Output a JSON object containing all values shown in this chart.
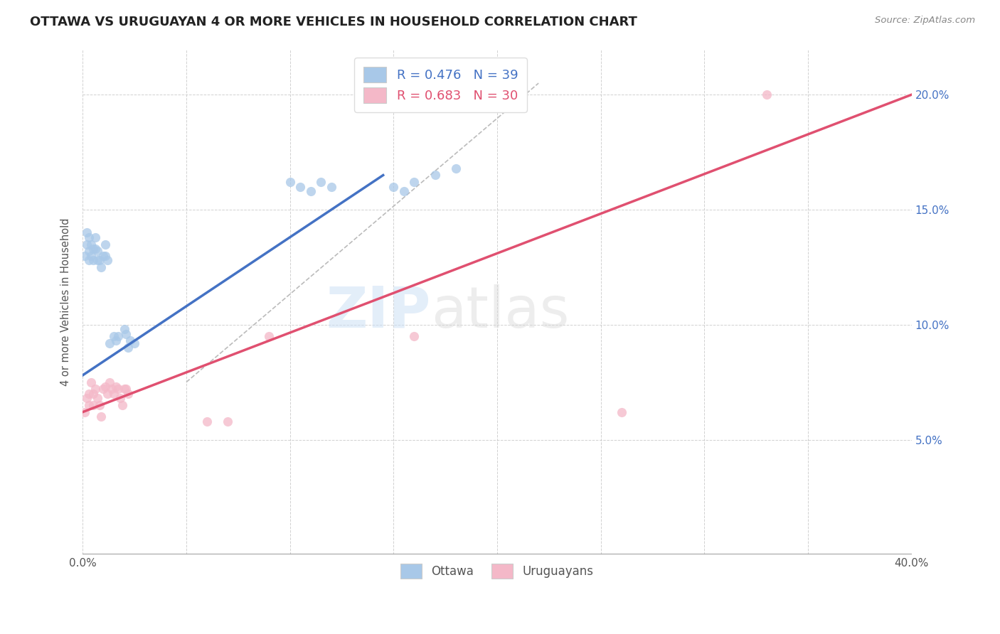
{
  "title": "OTTAWA VS URUGUAYAN 4 OR MORE VEHICLES IN HOUSEHOLD CORRELATION CHART",
  "source": "Source: ZipAtlas.com",
  "ylabel": "4 or more Vehicles in Household",
  "xlim": [
    0.0,
    0.4
  ],
  "ylim": [
    0.0,
    0.22
  ],
  "xticks": [
    0.0,
    0.05,
    0.1,
    0.15,
    0.2,
    0.25,
    0.3,
    0.35,
    0.4
  ],
  "yticks": [
    0.0,
    0.05,
    0.1,
    0.15,
    0.2
  ],
  "xtick_labels": [
    "0.0%",
    "",
    "",
    "",
    "",
    "",
    "",
    "",
    "40.0%"
  ],
  "ytick_labels_right": [
    "",
    "5.0%",
    "10.0%",
    "15.0%",
    "20.0%"
  ],
  "watermark_zip": "ZIP",
  "watermark_atlas": "atlas",
  "legend_blue_label": "R = 0.476   N = 39",
  "legend_pink_label": "R = 0.683   N = 30",
  "legend_bottom_blue": "Ottawa",
  "legend_bottom_pink": "Uruguayans",
  "blue_color": "#a8c8e8",
  "pink_color": "#f4b8c8",
  "blue_line_color": "#4472c4",
  "pink_line_color": "#e05070",
  "dashed_line_color": "#bbbbbb",
  "ottawa_x": [
    0.001,
    0.002,
    0.002,
    0.003,
    0.003,
    0.003,
    0.004,
    0.004,
    0.005,
    0.005,
    0.006,
    0.006,
    0.007,
    0.007,
    0.008,
    0.009,
    0.01,
    0.011,
    0.011,
    0.012,
    0.013,
    0.015,
    0.016,
    0.017,
    0.02,
    0.021,
    0.022,
    0.023,
    0.025,
    0.1,
    0.105,
    0.11,
    0.115,
    0.12,
    0.15,
    0.155,
    0.16,
    0.17,
    0.18
  ],
  "ottawa_y": [
    0.13,
    0.14,
    0.135,
    0.138,
    0.132,
    0.128,
    0.135,
    0.13,
    0.133,
    0.128,
    0.138,
    0.133,
    0.132,
    0.128,
    0.128,
    0.125,
    0.13,
    0.135,
    0.13,
    0.128,
    0.092,
    0.095,
    0.093,
    0.095,
    0.098,
    0.096,
    0.09,
    0.093,
    0.092,
    0.162,
    0.16,
    0.158,
    0.162,
    0.16,
    0.16,
    0.158,
    0.162,
    0.165,
    0.168
  ],
  "uruguayan_x": [
    0.001,
    0.002,
    0.003,
    0.003,
    0.004,
    0.005,
    0.005,
    0.006,
    0.007,
    0.008,
    0.009,
    0.01,
    0.011,
    0.012,
    0.013,
    0.014,
    0.015,
    0.016,
    0.017,
    0.018,
    0.019,
    0.02,
    0.021,
    0.022,
    0.06,
    0.07,
    0.09,
    0.16,
    0.26,
    0.33
  ],
  "uruguayan_y": [
    0.062,
    0.068,
    0.07,
    0.065,
    0.075,
    0.07,
    0.065,
    0.072,
    0.068,
    0.065,
    0.06,
    0.072,
    0.073,
    0.07,
    0.075,
    0.072,
    0.07,
    0.073,
    0.072,
    0.068,
    0.065,
    0.072,
    0.072,
    0.07,
    0.058,
    0.058,
    0.095,
    0.095,
    0.062,
    0.2
  ],
  "blue_line_x": [
    0.0,
    0.145
  ],
  "blue_line_y": [
    0.078,
    0.165
  ],
  "pink_line_x": [
    0.0,
    0.4
  ],
  "pink_line_y": [
    0.062,
    0.2
  ],
  "diag_line_x": [
    0.05,
    0.22
  ],
  "diag_line_y": [
    0.075,
    0.205
  ]
}
